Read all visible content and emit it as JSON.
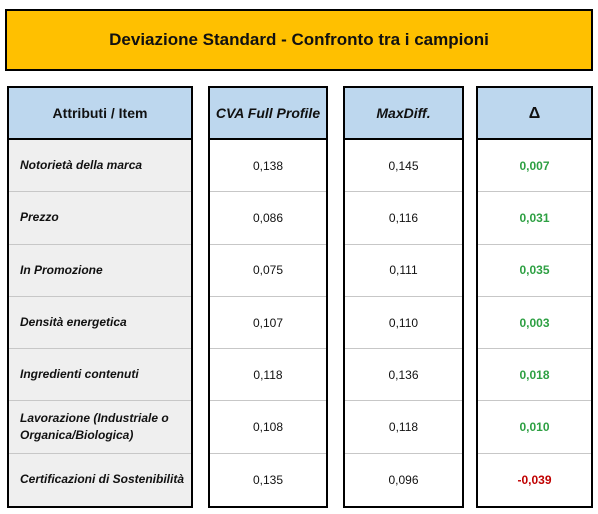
{
  "title": "Deviazione Standard - Confronto tra i campioni",
  "headers": {
    "attribute": "Attributi / Item",
    "cva": "CVA Full Profile",
    "maxdiff": "MaxDiff.",
    "delta": "Δ"
  },
  "rows": [
    {
      "attribute": "Notorietà della marca",
      "cva": "0,138",
      "maxdiff": "0,145",
      "delta": "0,007"
    },
    {
      "attribute": "Prezzo",
      "cva": "0,086",
      "maxdiff": "0,116",
      "delta": "0,031"
    },
    {
      "attribute": "In Promozione",
      "cva": "0,075",
      "maxdiff": "0,111",
      "delta": "0,035"
    },
    {
      "attribute": "Densità energetica",
      "cva": "0,107",
      "maxdiff": "0,110",
      "delta": "0,003"
    },
    {
      "attribute": "Ingredienti contenuti",
      "cva": "0,118",
      "maxdiff": "0,136",
      "delta": "0,018"
    },
    {
      "attribute": "Lavorazione (Industriale o Organica/Biologica)",
      "cva": "0,108",
      "maxdiff": "0,118",
      "delta": "0,010"
    },
    {
      "attribute": "Certificazioni di Sostenibilità",
      "cva": "0,135",
      "maxdiff": "0,096",
      "delta": "-0,039"
    }
  ],
  "colors": {
    "banner": "#ffc000",
    "header": "#bdd7ee",
    "positive": "#2ea043",
    "negative": "#c00000"
  }
}
